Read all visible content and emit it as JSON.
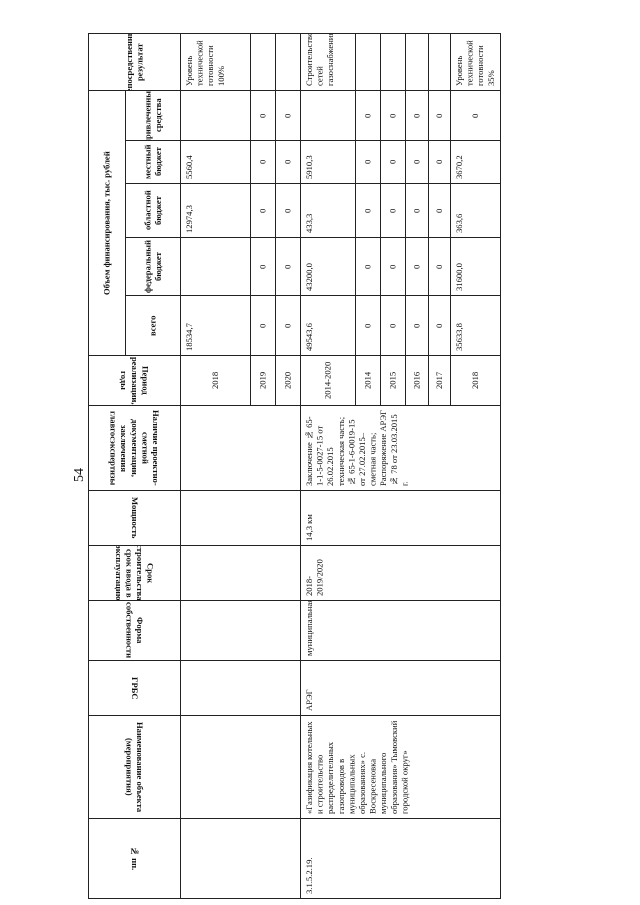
{
  "page_number": "54",
  "headers": {
    "num": "№ пп.",
    "name": "Наименование объекта (мероприятия)",
    "grbs": "ГРБС",
    "ownership": "Форма собственности",
    "term": "Срок строительства/срок ввода в эксплуатацию",
    "capacity": "Мощность",
    "psd": "Наличие проектно-сметной документации, заключения главгосэкспертизы",
    "period": "Период реализации, годы",
    "funding": "Объем финансирования, тыс. рублей",
    "total": "всего",
    "federal": "федеральный бюджет",
    "regional": "областной бюджет",
    "local": "местный бюджет",
    "attracted": "привлеченные средства",
    "result": "Непосредственный результат"
  },
  "group1": {
    "rows": [
      {
        "period": "2018",
        "total": "18534,7",
        "federal": "",
        "regional": "12974,3",
        "local": "5560,4",
        "attracted": "",
        "result": "Уровень технической готовности 100%"
      },
      {
        "period": "2019",
        "total": "0",
        "federal": "0",
        "regional": "0",
        "local": "0",
        "attracted": "0",
        "result": ""
      },
      {
        "period": "2020",
        "total": "0",
        "federal": "0",
        "regional": "0",
        "local": "0",
        "attracted": "0",
        "result": ""
      }
    ]
  },
  "group2": {
    "num": "3.1.5.2.19.",
    "name": "«Газификация котельных и строительство распределительных газопроводов в муниципальных образованиях» с. Воскресеновка муниципального образования» Тымовский городской округ»",
    "grbs": "АРЭГ",
    "ownership": "муниципальная",
    "term": "2018-2019/2020",
    "capacity": "14,3 км",
    "psd": "Заключение № 65-1-1-5-0027-15 от 26.02.2015 техническая часть; № 65-1-6-0019-15 от 27.02.2015–сметная часть; Распоряжение АРЭГ № 78 от 23.03.2015 г.",
    "rows": [
      {
        "period": "2014-2020",
        "total": "49543,6",
        "federal": "43200,0",
        "regional": "433,3",
        "local": "5910,3",
        "attracted": "",
        "result": "Строительство сетей газоснабжения"
      },
      {
        "period": "2014",
        "total": "0",
        "federal": "0",
        "regional": "0",
        "local": "0",
        "attracted": "0",
        "result": ""
      },
      {
        "period": "2015",
        "total": "0",
        "federal": "0",
        "regional": "0",
        "local": "0",
        "attracted": "0",
        "result": ""
      },
      {
        "period": "2016",
        "total": "0",
        "federal": "0",
        "regional": "0",
        "local": "0",
        "attracted": "0",
        "result": ""
      },
      {
        "period": "2017",
        "total": "0",
        "federal": "0",
        "regional": "0",
        "local": "0",
        "attracted": "0",
        "result": ""
      },
      {
        "period": "2018",
        "total": "35633,8",
        "federal": "31600,0",
        "regional": "363,6",
        "local": "3670,2",
        "attracted": "0",
        "result": "Уровень технической готовности 35%"
      }
    ]
  }
}
